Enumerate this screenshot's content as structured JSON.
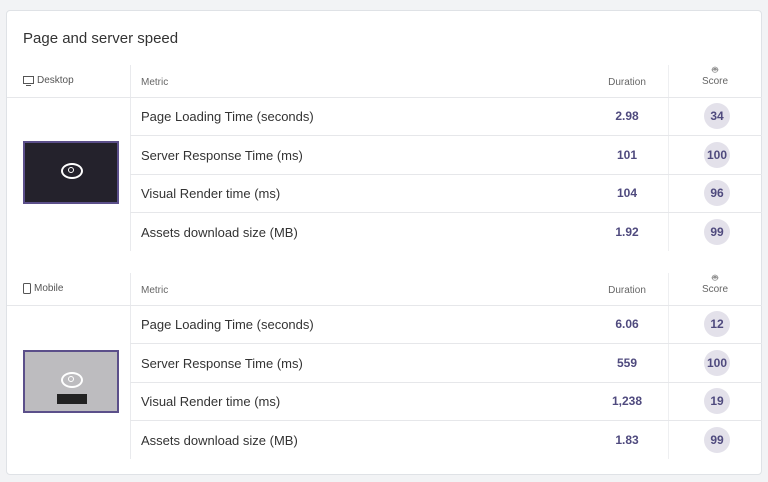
{
  "title": "Page and server speed",
  "headers": {
    "metric": "Metric",
    "duration": "Duration",
    "score": "Score"
  },
  "sections": [
    {
      "device": "Desktop",
      "device_icon": "monitor-icon",
      "rows": [
        {
          "metric": "Page Loading Time (seconds)",
          "duration": "2.98",
          "score": "34"
        },
        {
          "metric": "Server Response Time (ms)",
          "duration": "101",
          "score": "100"
        },
        {
          "metric": "Visual Render time (ms)",
          "duration": "104",
          "score": "96"
        },
        {
          "metric": "Assets download size (MB)",
          "duration": "1.92",
          "score": "99"
        }
      ]
    },
    {
      "device": "Mobile",
      "device_icon": "phone-icon",
      "rows": [
        {
          "metric": "Page Loading Time (seconds)",
          "duration": "6.06",
          "score": "12"
        },
        {
          "metric": "Server Response Time (ms)",
          "duration": "559",
          "score": "100"
        },
        {
          "metric": "Visual Render time (ms)",
          "duration": "1,238",
          "score": "19"
        },
        {
          "metric": "Assets download size (MB)",
          "duration": "1.83",
          "score": "99"
        }
      ]
    }
  ],
  "colors": {
    "accent": "#4f4a7e",
    "score_bg": "#e3e1ea"
  }
}
